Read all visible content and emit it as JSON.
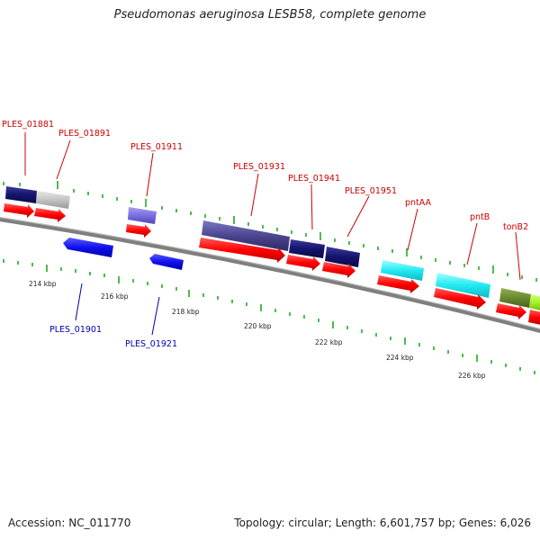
{
  "header": {
    "title": "Pseudomonas aeruginosa LESB58, complete genome"
  },
  "footer": {
    "accession": "Accession: NC_011770",
    "summary": "Topology: circular; Length: 6,601,757 bp; Genes: 6,026"
  },
  "kbp_labels": [
    "214 kbp",
    "216 kbp",
    "218 kbp",
    "220 kbp",
    "222 kbp",
    "224 kbp",
    "226 kbp"
  ],
  "gene_labels_top": [
    "PLES_01881",
    "PLES_01891",
    "PLES_01911",
    "PLES_01931",
    "PLES_01941",
    "PLES_01951",
    "pntAA",
    "pntB",
    "tonB2"
  ],
  "gene_labels_bottom": [
    "PLES_01901",
    "PLES_01921"
  ],
  "colors": {
    "backbone": "#888888",
    "cds": "#ff0000",
    "ticks": "#22aa22",
    "label_top": "#cc0000",
    "label_bottom": "#0000aa"
  }
}
